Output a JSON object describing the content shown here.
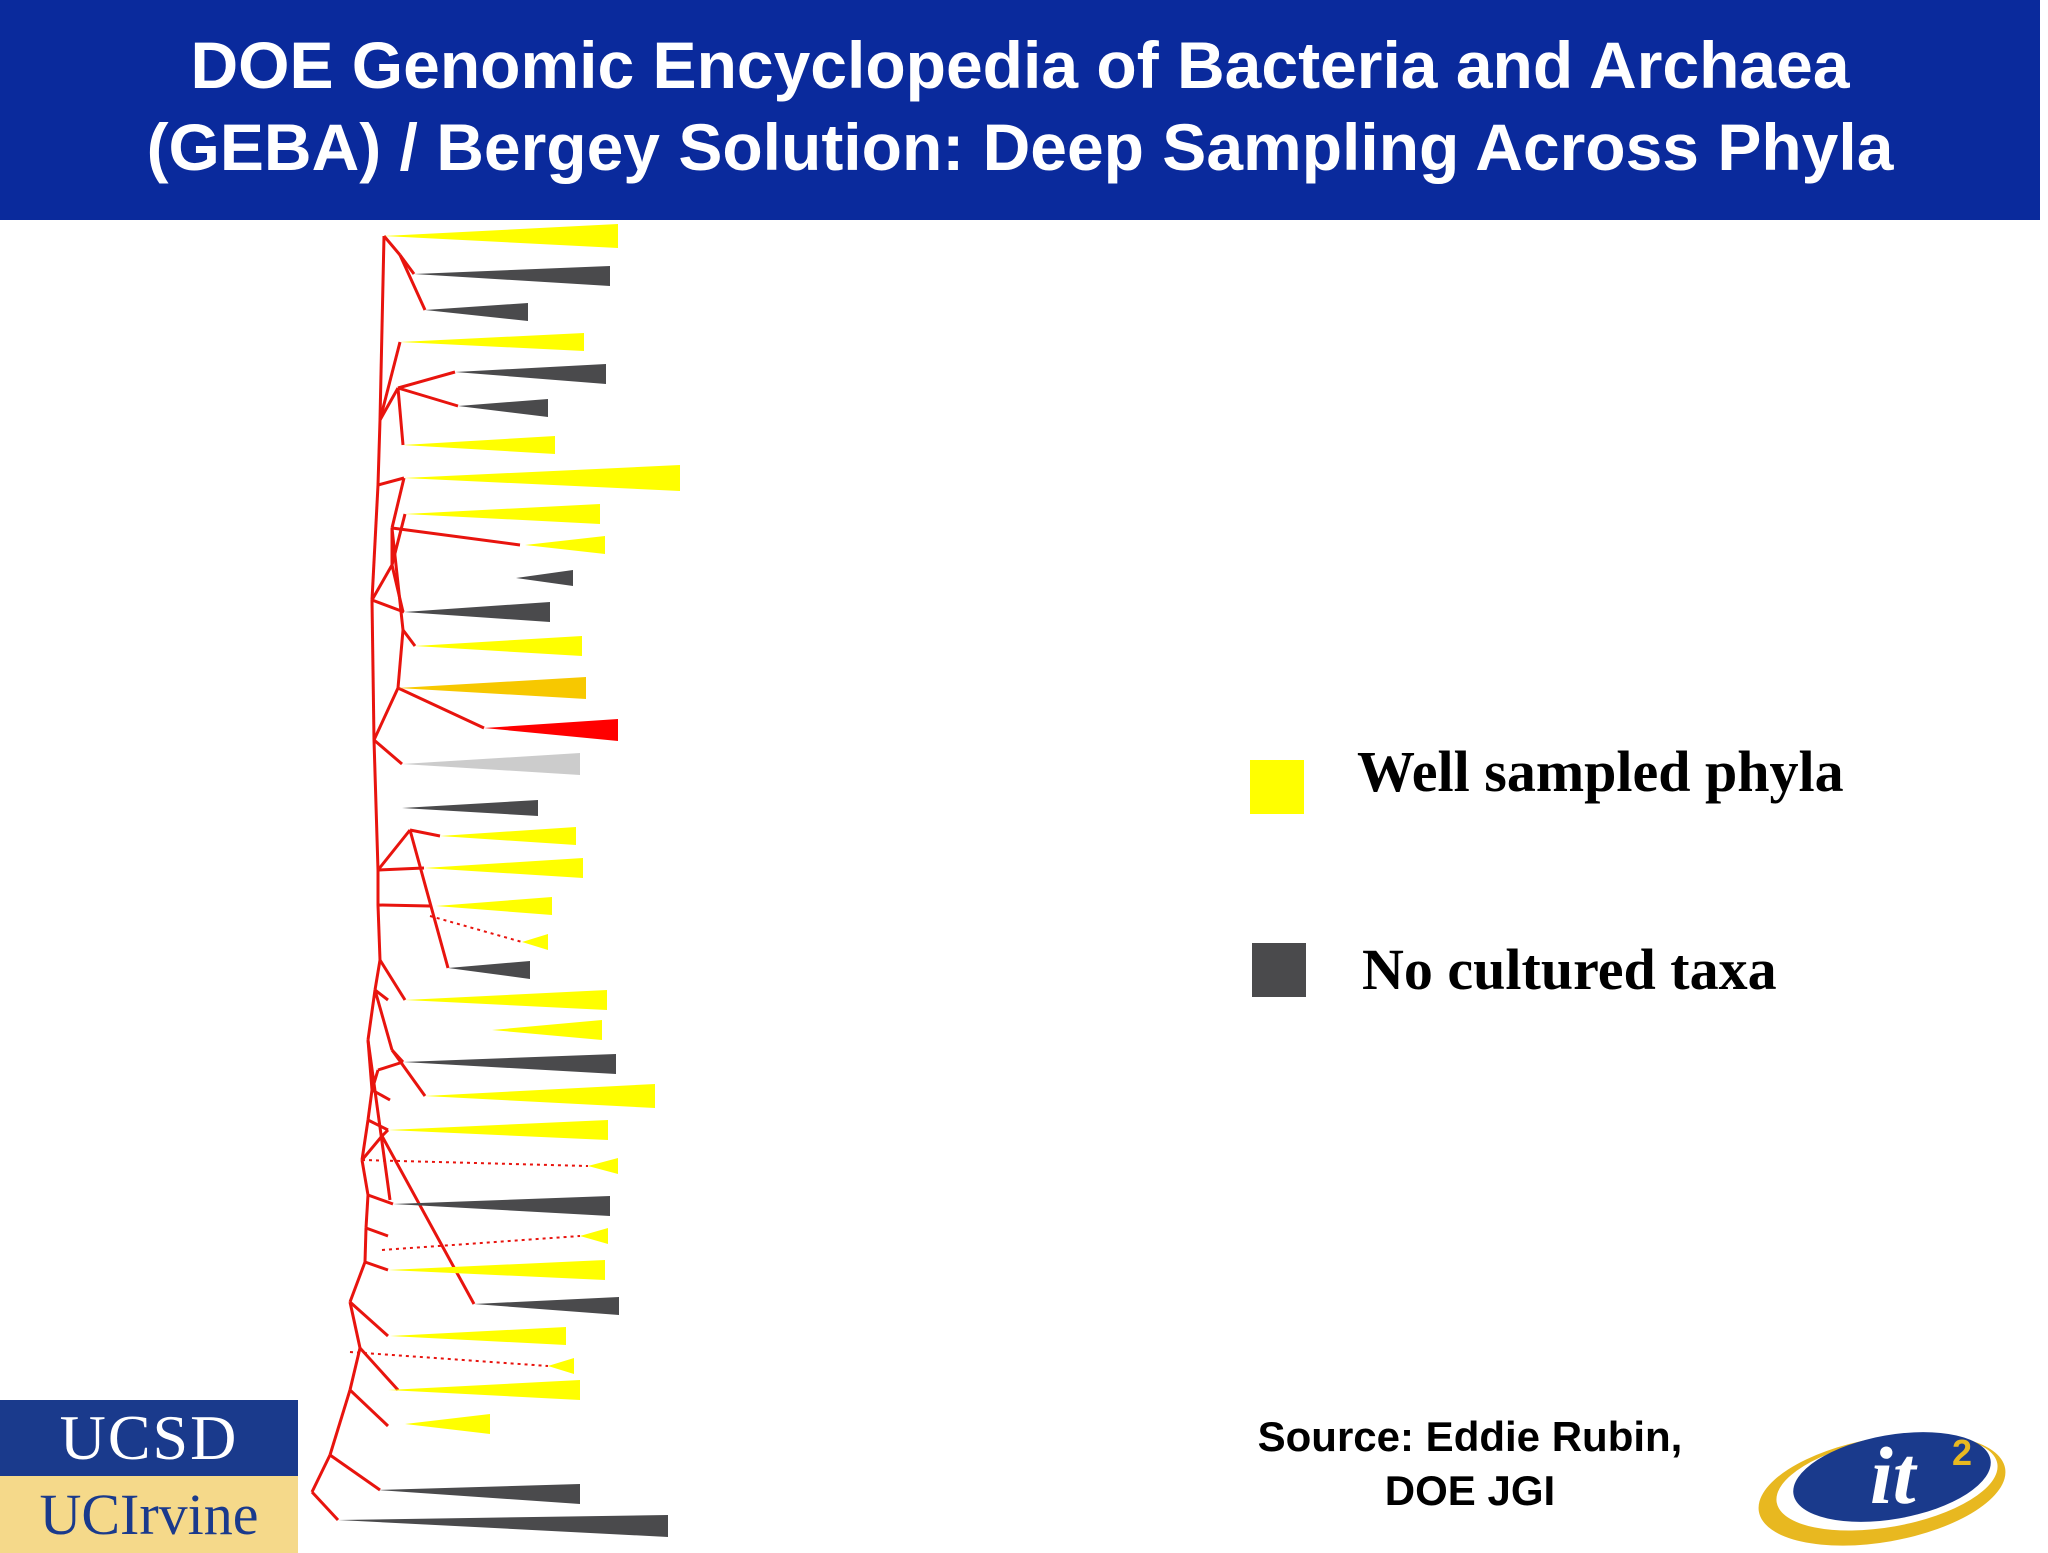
{
  "title": {
    "line1": "DOE Genomic Encyclopedia of Bacteria and Archaea",
    "line2": "(GEBA) / Bergey Solution: Deep Sampling Across Phyla"
  },
  "legend": [
    {
      "label": "Well sampled phyla",
      "color": "#ffff00"
    },
    {
      "label": "No cultured taxa",
      "color": "#4a4a4c"
    }
  ],
  "source": {
    "line1": "Source: Eddie Rubin,",
    "line2": "DOE JGI"
  },
  "logos": {
    "ucsd": "UCSD",
    "uci": "UCIrvine",
    "it2": "it",
    "it2_superscript": "2"
  },
  "colors": {
    "branch": "#e8140e",
    "well_sampled": "#ffff00",
    "no_cultured": "#4a4a4c",
    "orange": "#f7c800",
    "red": "#ff0000",
    "light_gray": "#cccccc",
    "title_bg": "#0a2a9c"
  },
  "tree": {
    "clade_kinds": [
      "yellow",
      "dark",
      "dark",
      "yellow",
      "dark",
      "dark",
      "yellow",
      "yellow",
      "yellow",
      "yellow",
      "dark",
      "dark",
      "yellow",
      "orange",
      "red",
      "lightgray",
      "dark",
      "yellow",
      "yellow",
      "yellow",
      "yellow",
      "dark",
      "yellow",
      "yellow",
      "dark",
      "yellow",
      "yellow",
      "yellow",
      "dark",
      "yellow",
      "yellow",
      "dark",
      "yellow",
      "yellow",
      "yellow",
      "yellow",
      "dark",
      "dark"
    ]
  }
}
